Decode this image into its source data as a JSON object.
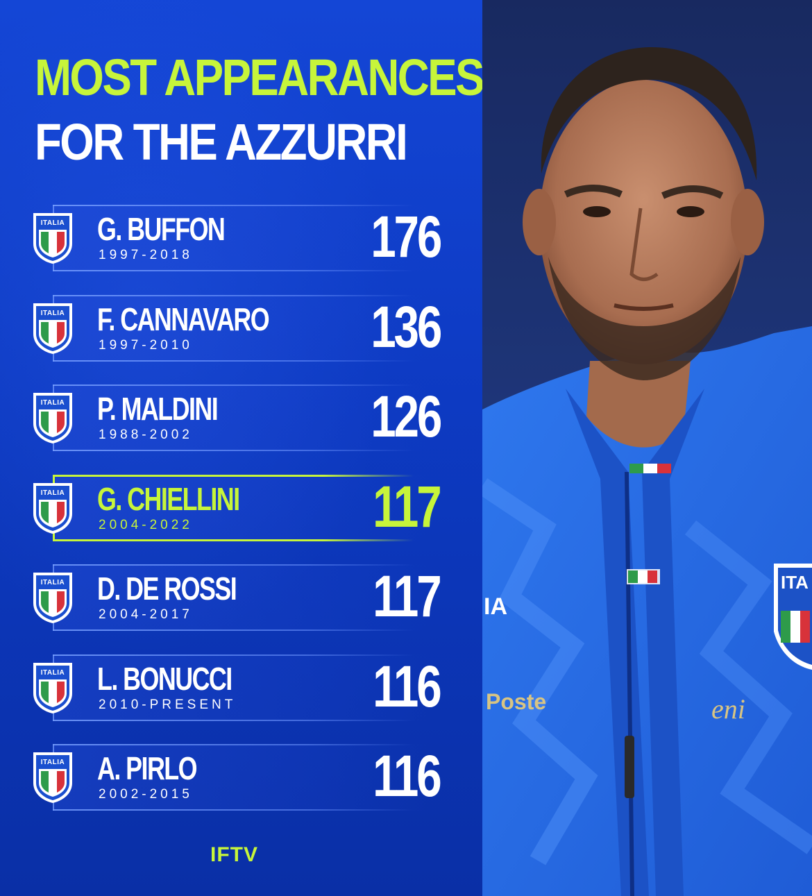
{
  "title": {
    "line1": "MOST APPEARANCES",
    "line2": "FOR THE AZZURRI"
  },
  "crest_text": "ITALIA",
  "players": [
    {
      "name": "G. BUFFON",
      "years": "1997-2018",
      "appearances": "176",
      "highlight": false
    },
    {
      "name": "F. CANNAVARO",
      "years": "1997-2010",
      "appearances": "136",
      "highlight": false
    },
    {
      "name": "P. MALDINI",
      "years": "1988-2002",
      "appearances": "126",
      "highlight": false
    },
    {
      "name": "G. CHIELLINI",
      "years": "2004-2022",
      "appearances": "117",
      "highlight": true
    },
    {
      "name": "D. DE ROSSI",
      "years": "2004-2017",
      "appearances": "117",
      "highlight": false
    },
    {
      "name": "L. BONUCCI",
      "years": "2010-PRESENT",
      "appearances": "116",
      "highlight": false
    },
    {
      "name": "A. PIRLO",
      "years": "2002-2015",
      "appearances": "116",
      "highlight": false
    }
  ],
  "logo": "IFTV",
  "photo": {
    "jersey_sponsor_left": "Poste",
    "jersey_sponsor_right": "eni",
    "crest_partial": "ITA",
    "kit_brand_partial": "IA"
  },
  "colors": {
    "accent": "#c7f53a",
    "background": "#0d3ac2",
    "text": "#ffffff"
  }
}
